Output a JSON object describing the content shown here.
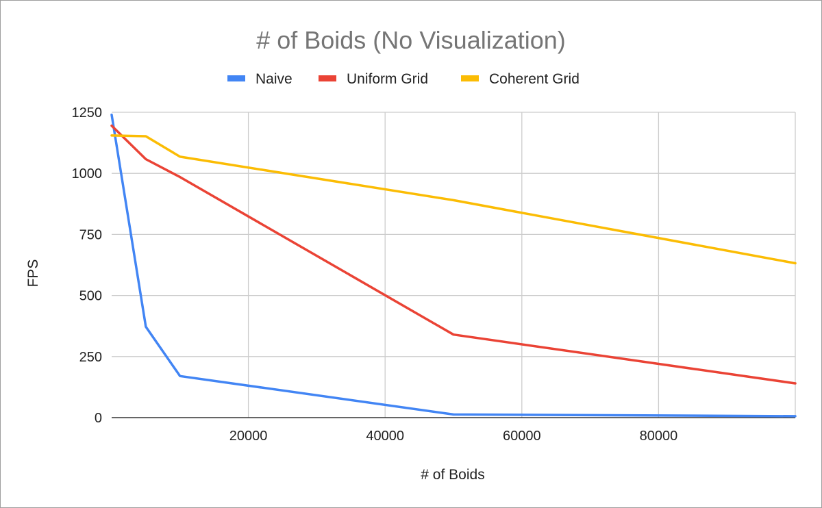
{
  "chart_data": {
    "type": "line",
    "title": "# of Boids (No Visualization)",
    "xlabel": "# of Boids",
    "ylabel": "FPS",
    "xlim": [
      0,
      100000
    ],
    "ylim": [
      0,
      1250
    ],
    "xticks": [
      20000,
      40000,
      60000,
      80000
    ],
    "yticks": [
      0,
      250,
      500,
      750,
      1000,
      1250
    ],
    "grid": true,
    "legend_position": "top",
    "x": [
      0,
      5000,
      10000,
      50000,
      100000
    ],
    "series": [
      {
        "name": "Naive",
        "color": "#4285f4",
        "values": [
          1240,
          372,
          170,
          13,
          6
        ]
      },
      {
        "name": "Uniform Grid",
        "color": "#ea4335",
        "values": [
          1195,
          1058,
          985,
          340,
          140
        ]
      },
      {
        "name": "Coherent Grid",
        "color": "#fbbc04",
        "values": [
          1155,
          1152,
          1068,
          890,
          632
        ]
      }
    ]
  }
}
